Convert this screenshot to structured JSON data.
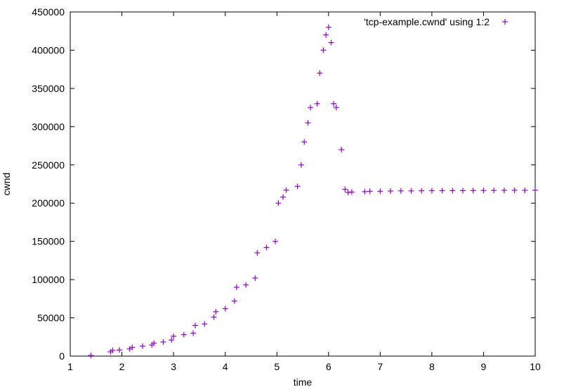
{
  "chart_data": {
    "type": "scatter",
    "title": "",
    "xlabel": "time",
    "ylabel": "cwnd",
    "xlim": [
      1,
      10
    ],
    "ylim": [
      0,
      450000
    ],
    "xticks": [
      "1",
      "2",
      "3",
      "4",
      "5",
      "6",
      "7",
      "8",
      "9",
      "10"
    ],
    "yticks": [
      "0",
      "50000",
      "100000",
      "150000",
      "200000",
      "250000",
      "300000",
      "350000",
      "400000",
      "450000"
    ],
    "grid": false,
    "legend_position": "top-right",
    "marker": "+",
    "series": [
      {
        "name": "'tcp-example.cwnd' using 1:2",
        "color": "#9400d3",
        "x": [
          1.4,
          1.78,
          1.82,
          1.95,
          2.15,
          2.2,
          2.4,
          2.58,
          2.62,
          2.8,
          2.96,
          3.0,
          3.2,
          3.38,
          3.42,
          3.6,
          3.78,
          3.82,
          4.0,
          4.18,
          4.22,
          4.4,
          4.58,
          4.62,
          4.8,
          4.97,
          5.03,
          5.12,
          5.18,
          5.4,
          5.47,
          5.53,
          5.6,
          5.65,
          5.78,
          5.83,
          5.9,
          5.95,
          6.0,
          6.05,
          6.1,
          6.15,
          6.25,
          6.32,
          6.38,
          6.45,
          6.7,
          6.8,
          7.0,
          7.2,
          7.4,
          7.6,
          7.8,
          8.0,
          8.2,
          8.4,
          8.6,
          8.8,
          9.0,
          9.2,
          9.4,
          9.6,
          9.8,
          10.0
        ],
        "y": [
          800,
          5500,
          7500,
          8000,
          9500,
          11500,
          13000,
          14500,
          17000,
          18500,
          21000,
          26000,
          28000,
          30000,
          40000,
          42000,
          51000,
          58000,
          62000,
          72000,
          90000,
          93000,
          102000,
          135000,
          142000,
          150000,
          200000,
          208000,
          217000,
          222000,
          250000,
          280000,
          305000,
          325000,
          330000,
          370000,
          400000,
          420000,
          430000,
          410000,
          330000,
          325000,
          270000,
          218000,
          214000,
          214500,
          215000,
          215500,
          215500,
          215800,
          216000,
          216000,
          216200,
          216300,
          216300,
          216400,
          216400,
          216500,
          216500,
          216600,
          216600,
          216700,
          216700,
          216800
        ]
      }
    ]
  }
}
